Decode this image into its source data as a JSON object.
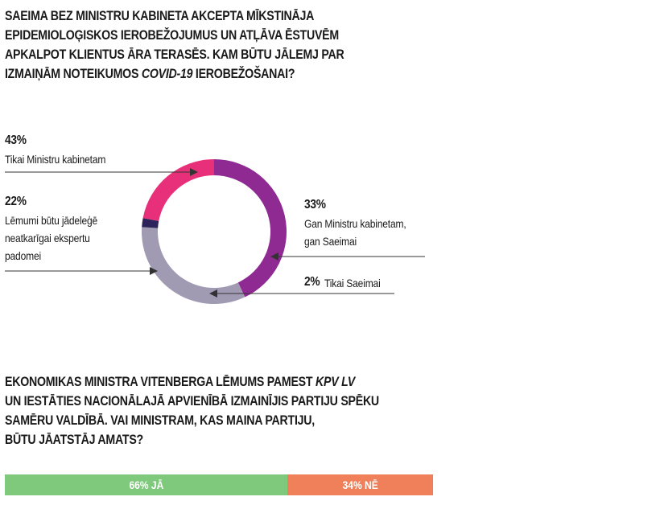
{
  "question1": {
    "lines": [
      "SAEIMA BEZ MINISTRU KABINETA AKCEPTA MĪKSTINĀJA",
      "EPIDEMIOLOĢISKOS IEROBEŽOJUMUS UN ATĻĀVA ĒSTUVĒM",
      "APKALPOT KLIENTUS ĀRA TERASĒS. KAM BŪTU JĀLEMJ PAR"
    ],
    "line4_pre": "IZMAIŅĀM NOTEIKUMOS ",
    "line4_em": "COVID-19",
    "line4_post": " IEROBEŽOŠANAI?"
  },
  "question2": {
    "line1_pre": "EKONOMIKAS MINISTRA VITENBERGA LĒMUMS PAMEST ",
    "line1_em": "KPV LV",
    "lines": [
      "UN IESTĀTIES NACIONĀLAJĀ APVIENĪBĀ IZMAINĪJIS PARTIJU SPĒKU",
      "SAMĒRU VALDĪBĀ. VAI MINISTRAM, KAS MAINA PARTIJU,",
      "BŪTU JĀATSTĀJ AMATS?"
    ]
  },
  "chart_data": [
    {
      "type": "pie",
      "variant": "donut",
      "slices": [
        {
          "pct_label": "43%",
          "label_lines": [
            "Tikai Ministru kabinetam"
          ],
          "value": 43,
          "color": "#8e2a91"
        },
        {
          "pct_label": "33%",
          "label_lines": [
            "Gan Ministru kabinetam,",
            "gan Saeimai"
          ],
          "value": 33,
          "color": "#a09ab3"
        },
        {
          "pct_label": "2%",
          "label_lines": [
            "Tikai  Saeimai"
          ],
          "value": 2,
          "color": "#2b2359"
        },
        {
          "pct_label": "22%",
          "label_lines": [
            "Lēmumi būtu jādeleģē",
            "neatkarīgai ekspertu",
            "padomei"
          ],
          "value": 22,
          "color": "#e8307a"
        }
      ]
    },
    {
      "type": "bar",
      "variant": "stacked-horizontal",
      "segments": [
        {
          "label": "66% JĀ",
          "value": 66,
          "color": "#7ec97c"
        },
        {
          "label": "34% NĒ",
          "value": 34,
          "color": "#f0805a"
        }
      ]
    }
  ]
}
